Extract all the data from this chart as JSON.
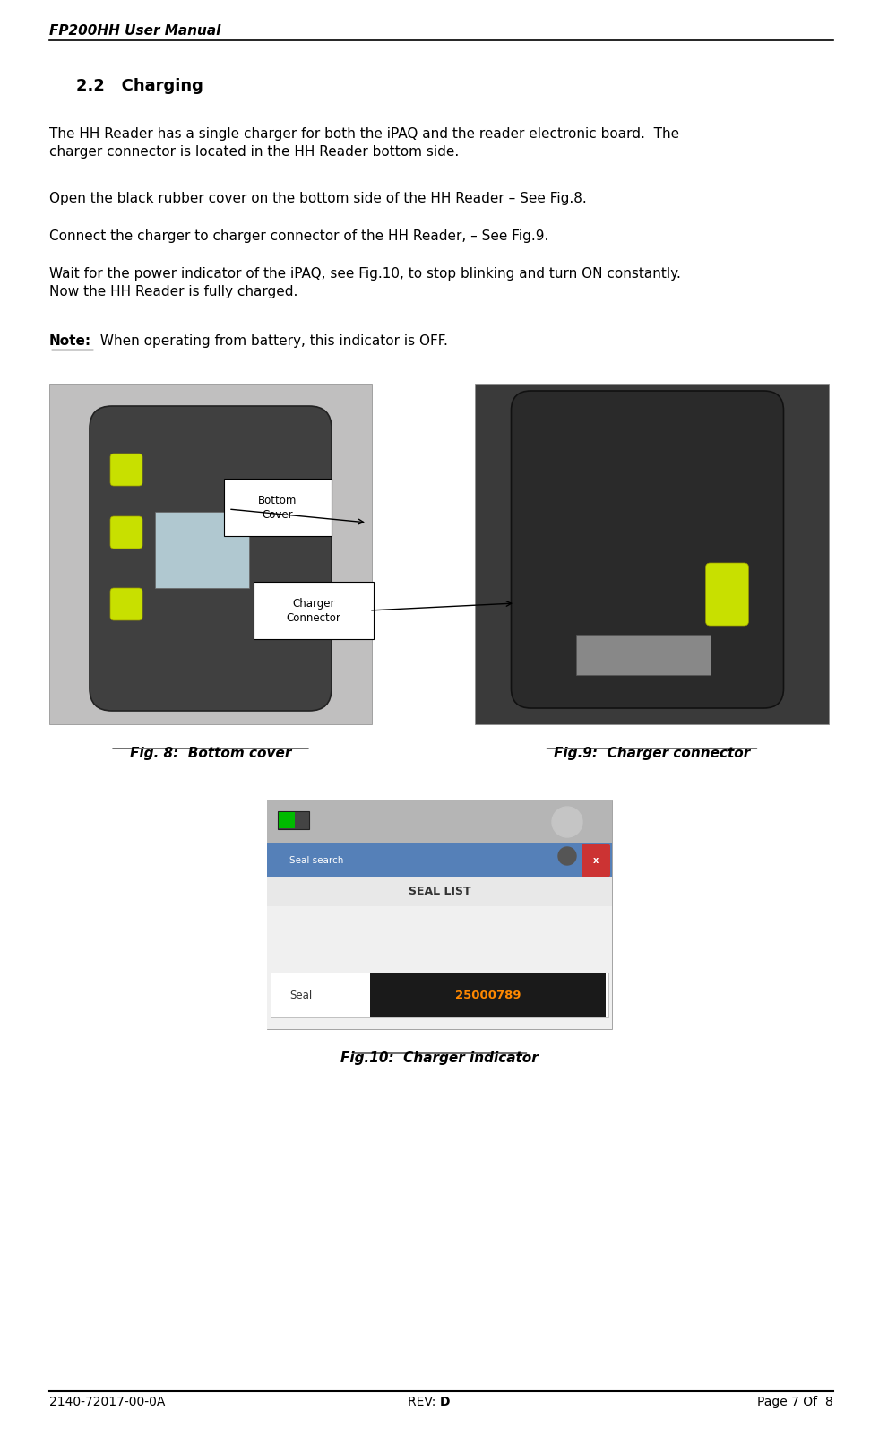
{
  "page_width": 9.81,
  "page_height": 16.02,
  "bg_color": "#ffffff",
  "header_text": "FP200HH User Manual",
  "section_title": "2.2   Charging",
  "body_line1": "The HH Reader has a single charger for both the iPAQ and the reader electronic board.  The\ncharger connector is located in the HH Reader bottom side.",
  "body_line2": "Open the black rubber cover on the bottom side of the HH Reader – See Fig.8.",
  "body_line3": "Connect the charger to charger connector of the HH Reader, – See Fig.9.",
  "body_line4": "Wait for the power indicator of the iPAQ, see Fig.10, to stop blinking and turn ON constantly.\nNow the HH Reader is fully charged.",
  "note_bold": "Note:",
  "note_rest": " When operating from battery, this indicator is OFF.",
  "fig8_caption": "Fig. 8:  Bottom cover",
  "fig9_caption": "Fig.9:  Charger connector",
  "fig10_caption": "Fig.10:  Charger indicator",
  "callout_bottom_cover": "Bottom\nCover",
  "callout_charger_connector": "Charger\nConnector",
  "footer_left": "2140-72017-00-0A",
  "footer_center_plain": "REV: ",
  "footer_center_bold": "D",
  "footer_right_plain1": "Page ",
  "footer_right_bold1": "7",
  "footer_right_plain2": " Of  ",
  "footer_right_bold2": "8",
  "text_color": "#000000",
  "font_size_header": 11,
  "font_size_section": 13,
  "font_size_body": 11,
  "font_size_caption": 11,
  "font_size_footer": 10
}
